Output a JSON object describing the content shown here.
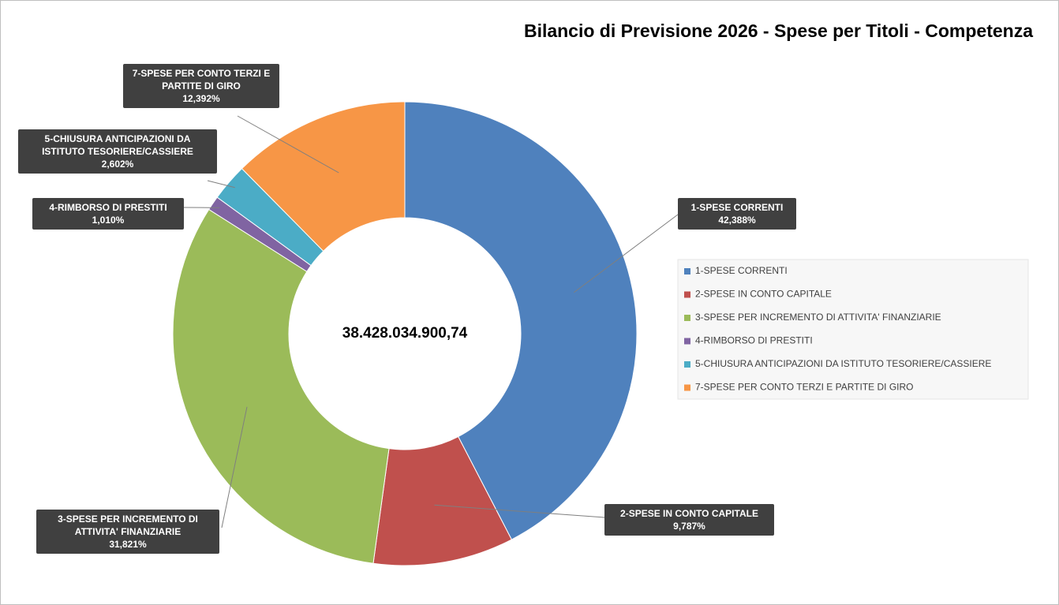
{
  "chart_data": {
    "type": "donut",
    "title": "Bilancio di Previsione 2026 - Spese per Titoli - Competenza",
    "center_label": "38.428.034.900,74",
    "categories": [
      "1-SPESE CORRENTI",
      "2-SPESE IN CONTO CAPITALE",
      "3-SPESE PER INCREMENTO DI ATTIVITA' FINANZIARIE",
      "4-RIMBORSO DI PRESTITI",
      "5-CHIUSURA ANTICIPAZIONI DA ISTITUTO TESORIERE/CASSIERE",
      "7-SPESE PER CONTO TERZI E PARTITE DI GIRO"
    ],
    "values": [
      42.388,
      9.787,
      31.821,
      1.01,
      2.602,
      12.392
    ],
    "value_labels": [
      "42,388%",
      "9,787%",
      "31,821%",
      "1,010%",
      "2,602%",
      "12,392%"
    ],
    "colors": [
      "#4f81bd",
      "#c0504d",
      "#9bbb59",
      "#8064a2",
      "#4bacc6",
      "#f79646"
    ],
    "legend": "right"
  }
}
